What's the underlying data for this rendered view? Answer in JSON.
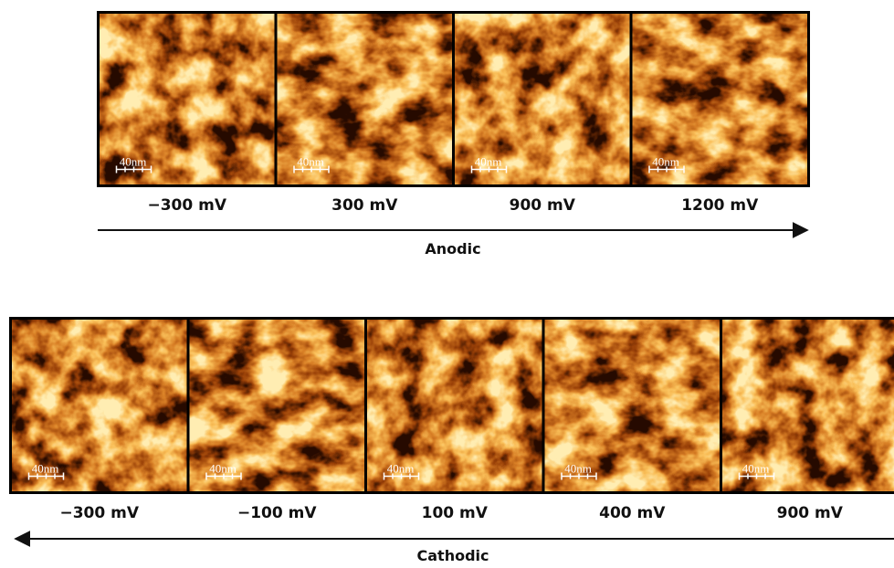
{
  "anodic": {
    "label": "Anodic",
    "panels": [
      {
        "scale_label": "40nm",
        "voltage": "−300 mV"
      },
      {
        "scale_label": "40nm",
        "voltage": "300 mV"
      },
      {
        "scale_label": "40nm",
        "voltage": "900 mV"
      },
      {
        "scale_label": "40nm",
        "voltage": "1200 mV"
      }
    ]
  },
  "cathodic": {
    "label": "Cathodic",
    "panels": [
      {
        "scale_label": "40nm",
        "voltage": "−300 mV"
      },
      {
        "scale_label": "40nm",
        "voltage": "−100 mV"
      },
      {
        "scale_label": "40nm",
        "voltage": "100 mV"
      },
      {
        "scale_label": "40nm",
        "voltage": "400 mV"
      },
      {
        "scale_label": "40nm",
        "voltage": "900 mV"
      }
    ]
  }
}
